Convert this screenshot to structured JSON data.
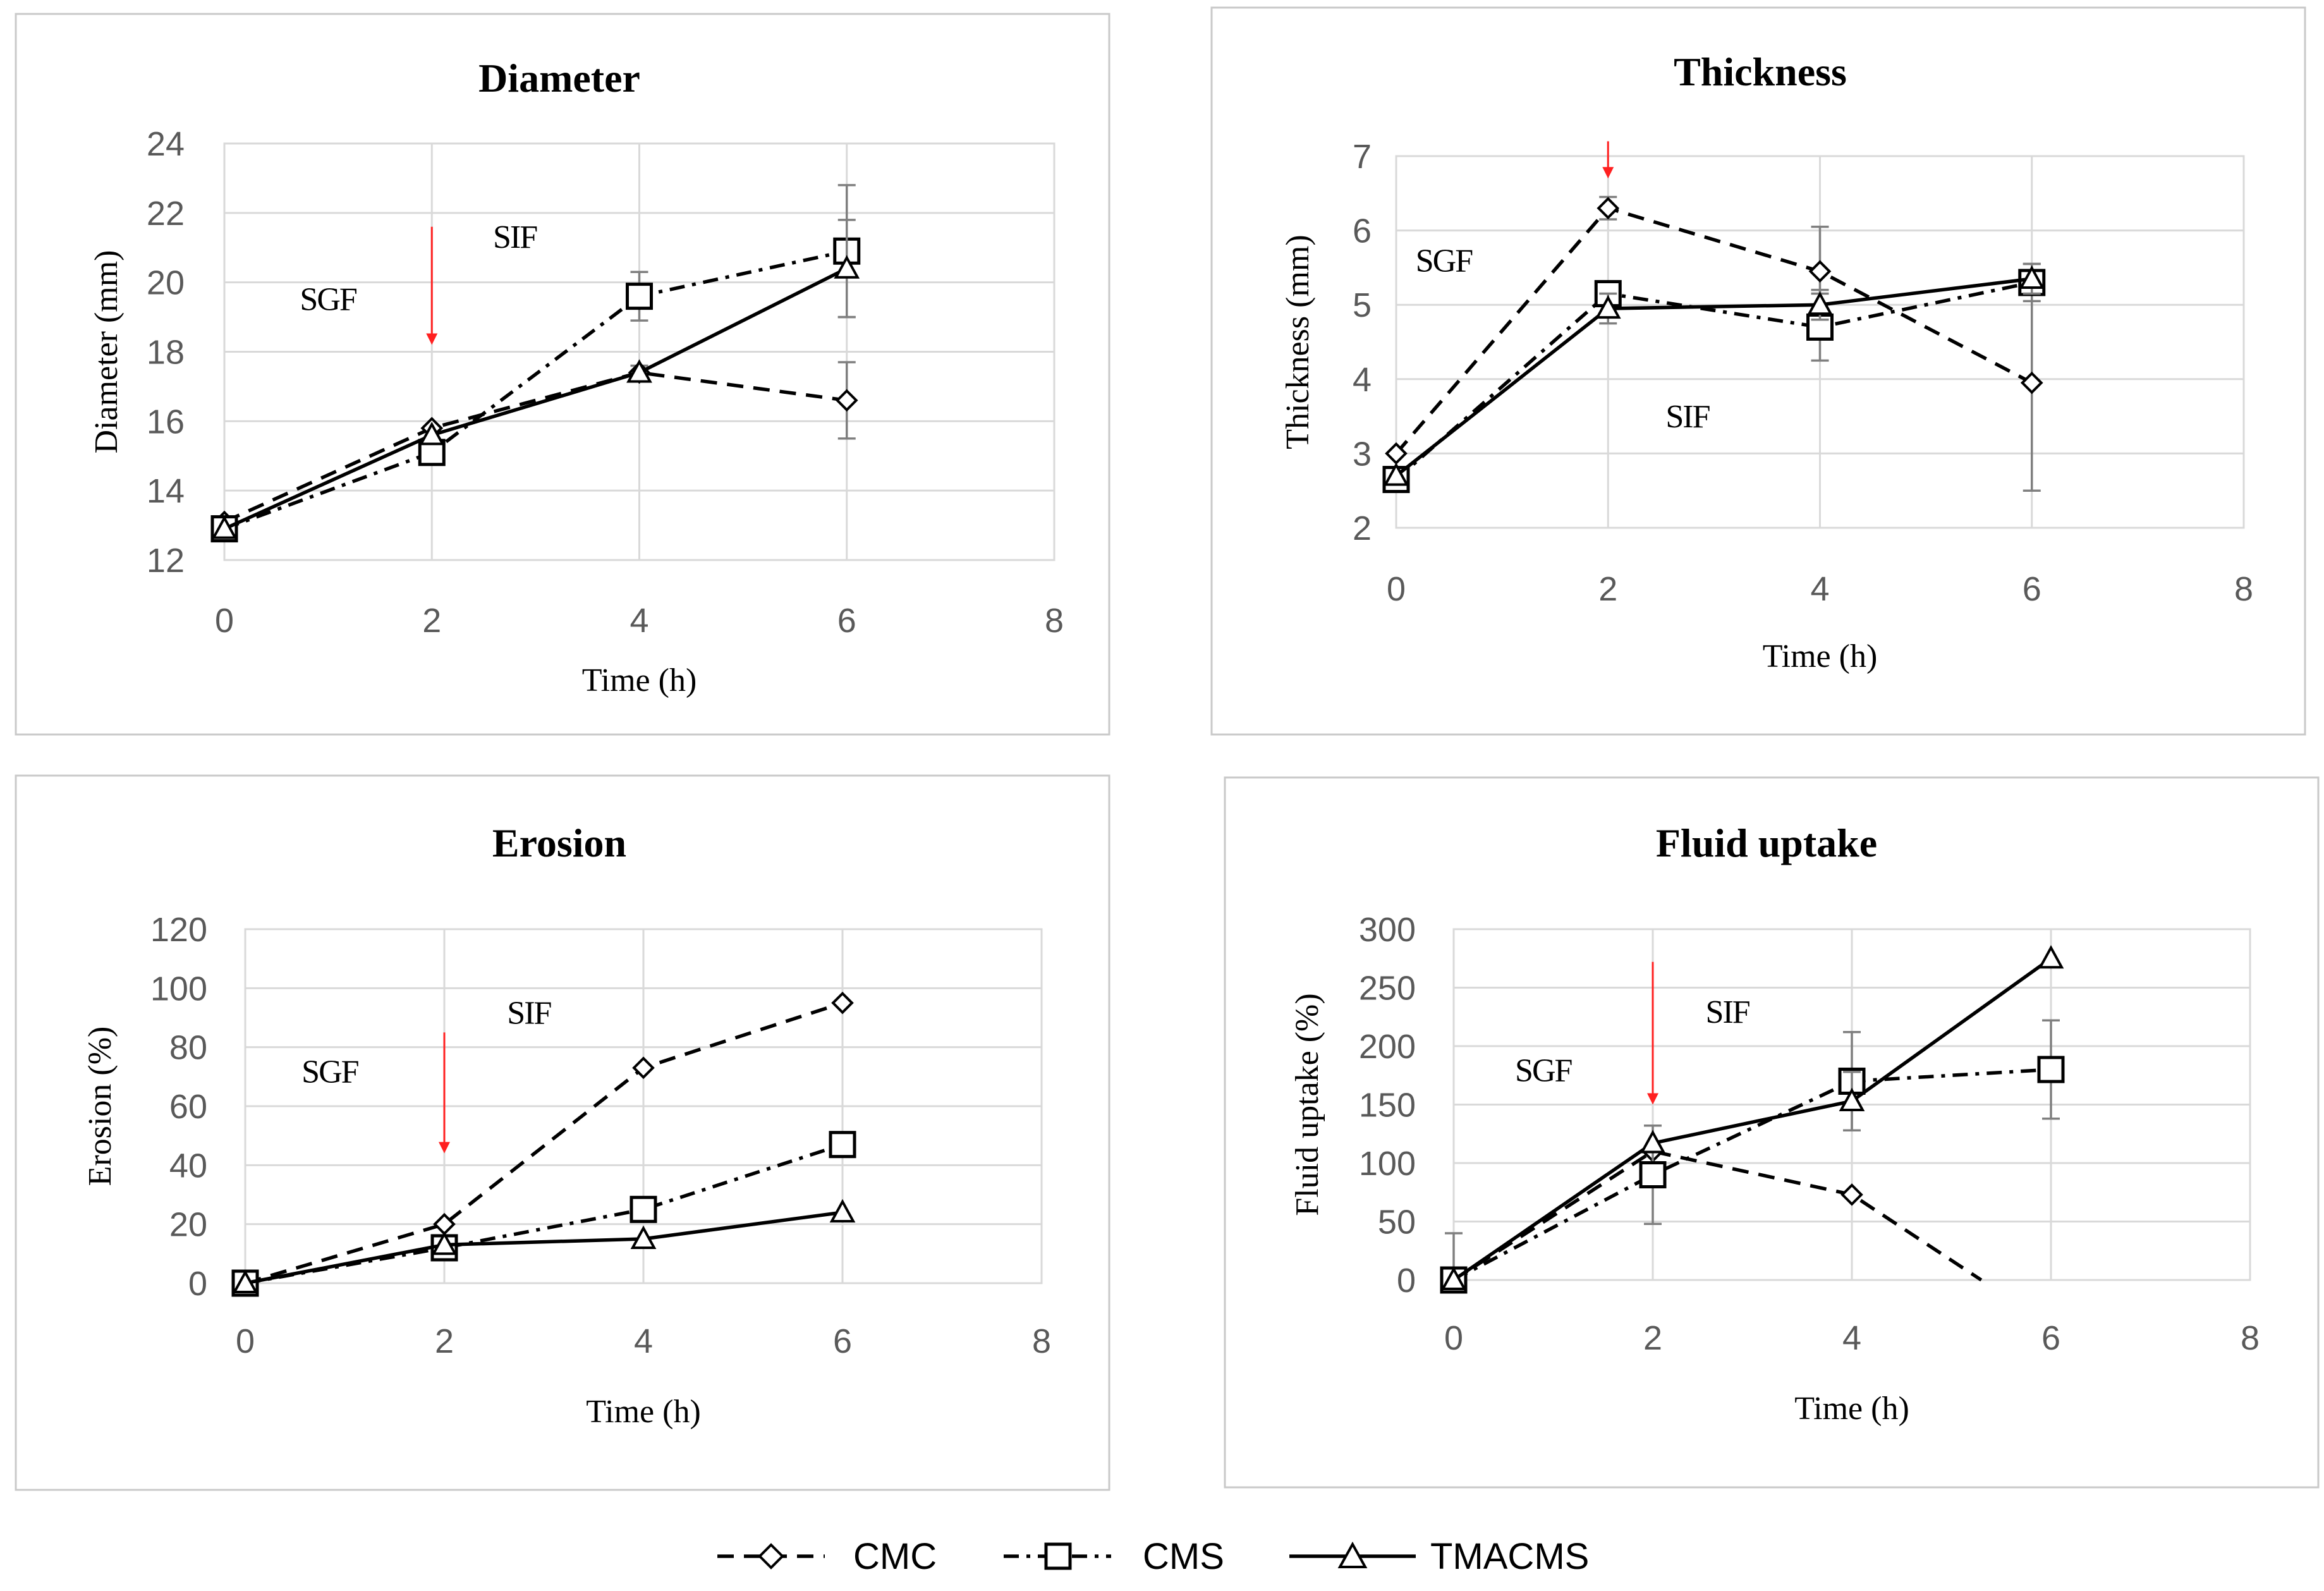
{
  "legend": [
    {
      "name": "CMC",
      "marker": "diamond",
      "dash": "dashed"
    },
    {
      "name": "CMS",
      "marker": "square",
      "dash": "dashdot"
    },
    {
      "name": "TMACMS",
      "marker": "triangle",
      "dash": "solid"
    }
  ],
  "chart_data": [
    {
      "type": "line",
      "title": "Diameter",
      "xlabel": "Time (h)",
      "ylabel": "Diameter (mm)",
      "xlim": [
        0,
        8
      ],
      "ylim": [
        12,
        24
      ],
      "xticks": [
        0,
        2,
        4,
        6,
        8
      ],
      "yticks": [
        12,
        14,
        16,
        18,
        20,
        22,
        24
      ],
      "grid": true,
      "annotations": [
        {
          "text": "SGF",
          "x": 1,
          "y": 19.2
        },
        {
          "text": "SIF",
          "x": 2.8,
          "y": 21.0
        }
      ],
      "arrow": {
        "x": 2,
        "y_from": 21.6,
        "y_to": 18.2
      },
      "series": [
        {
          "name": "CMC",
          "x": [
            0,
            2,
            4,
            6
          ],
          "values": [
            13.1,
            15.8,
            17.4,
            16.6
          ],
          "error": [
            0,
            0,
            0.2,
            1.1
          ]
        },
        {
          "name": "CMS",
          "x": [
            0,
            2,
            4,
            6
          ],
          "values": [
            12.9,
            15.1,
            19.6,
            20.9
          ],
          "error": [
            0,
            0,
            0.7,
            1.9
          ]
        },
        {
          "name": "TMACMS",
          "x": [
            0,
            2,
            4,
            6
          ],
          "values": [
            12.9,
            15.6,
            17.4,
            20.4
          ],
          "error": [
            0,
            0,
            0,
            1.4
          ]
        }
      ]
    },
    {
      "type": "line",
      "title": "Thickness",
      "xlabel": "Time (h)",
      "ylabel": "Thickness (mm)",
      "xlim": [
        0,
        8
      ],
      "ylim": [
        2,
        7
      ],
      "xticks": [
        0,
        2,
        4,
        6,
        8
      ],
      "yticks": [
        2,
        3,
        4,
        5,
        6,
        7
      ],
      "grid": true,
      "annotations": [
        {
          "text": "SGF",
          "x": 0.45,
          "y": 5.45
        },
        {
          "text": "SIF",
          "x": 2.75,
          "y": 3.35
        }
      ],
      "arrow": {
        "x": 2,
        "y_from": 7.2,
        "y_to": 6.7
      },
      "series": [
        {
          "name": "CMC",
          "x": [
            0,
            2,
            4,
            6
          ],
          "values": [
            3.0,
            6.3,
            5.45,
            3.95
          ],
          "error": [
            0,
            0.15,
            0.6,
            1.45
          ]
        },
        {
          "name": "CMS",
          "x": [
            0,
            2,
            4,
            6
          ],
          "values": [
            2.65,
            5.15,
            4.7,
            5.3
          ],
          "error": [
            0,
            0.15,
            0.45,
            0.25
          ]
        },
        {
          "name": "TMACMS",
          "x": [
            0,
            2,
            4,
            6
          ],
          "values": [
            2.7,
            4.95,
            5.0,
            5.35
          ],
          "error": [
            0,
            0.2,
            0.2,
            0.2
          ]
        }
      ]
    },
    {
      "type": "line",
      "title": "Erosion",
      "xlabel": "Time (h)",
      "ylabel": "Erosion (%)",
      "xlim": [
        0,
        8
      ],
      "ylim": [
        0,
        120
      ],
      "xticks": [
        0,
        2,
        4,
        6,
        8
      ],
      "yticks": [
        0,
        20,
        40,
        60,
        80,
        100,
        120
      ],
      "grid": true,
      "annotations": [
        {
          "text": "SGF",
          "x": 0.85,
          "y": 68
        },
        {
          "text": "SIF",
          "x": 2.85,
          "y": 88
        }
      ],
      "arrow": {
        "x": 2,
        "y_from": 85,
        "y_to": 44
      },
      "series": [
        {
          "name": "CMC",
          "x": [
            0,
            2,
            4,
            6
          ],
          "values": [
            0,
            20,
            73,
            95
          ],
          "error": [
            0,
            0,
            0,
            0
          ]
        },
        {
          "name": "CMS",
          "x": [
            0,
            2,
            4,
            6
          ],
          "values": [
            0,
            12,
            25,
            47
          ],
          "error": [
            0,
            0,
            0,
            0
          ]
        },
        {
          "name": "TMACMS",
          "x": [
            0,
            2,
            4,
            6
          ],
          "values": [
            0,
            13,
            15,
            24
          ],
          "error": [
            0,
            0,
            0,
            0
          ]
        }
      ]
    },
    {
      "type": "line",
      "title": "Fluid uptake",
      "xlabel": "Time (h)",
      "ylabel": "Fluid uptake (%)",
      "xlim": [
        0,
        8
      ],
      "ylim": [
        0,
        300
      ],
      "xticks": [
        0,
        2,
        4,
        6,
        8
      ],
      "yticks": [
        0,
        50,
        100,
        150,
        200,
        250,
        300
      ],
      "grid": true,
      "annotations": [
        {
          "text": "SGF",
          "x": 0.9,
          "y": 170
        },
        {
          "text": "SIF",
          "x": 2.75,
          "y": 220
        }
      ],
      "arrow": {
        "x": 2,
        "y_from": 272,
        "y_to": 150
      },
      "series": [
        {
          "name": "CMC",
          "x": [
            0,
            2,
            4,
            5.3
          ],
          "values": [
            0,
            110,
            73,
            0
          ],
          "error": [
            0,
            0,
            0,
            0
          ]
        },
        {
          "name": "CMS",
          "x": [
            0,
            2,
            4,
            6
          ],
          "values": [
            0,
            90,
            170,
            180
          ],
          "error": [
            40,
            42,
            42,
            42
          ]
        },
        {
          "name": "TMACMS",
          "x": [
            0,
            2,
            4,
            6
          ],
          "values": [
            0,
            117,
            153,
            275
          ],
          "error": [
            0,
            0,
            25,
            0
          ]
        }
      ]
    }
  ]
}
